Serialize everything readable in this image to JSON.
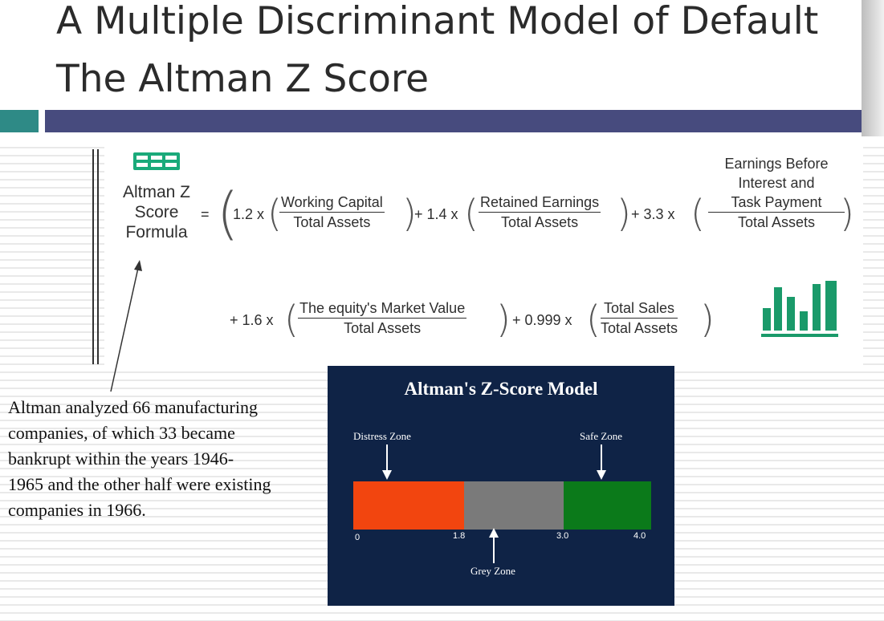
{
  "slide": {
    "title_line1": "A Multiple Discriminant Model of Default",
    "title_line2": "The Altman Z Score"
  },
  "formula": {
    "label_line1": "Altman Z",
    "label_line2": "Score",
    "label_line3": "Formula",
    "equals": "=",
    "term1_coef": "1.2 x",
    "term1_num": "Working Capital",
    "term1_den": "Total Assets",
    "term2_coef": "+ 1.4 x",
    "term2_num": "Retained Earnings",
    "term2_den": "Total Assets",
    "term3_coef": "+ 3.3 x",
    "term3_num_line1": "Earnings Before",
    "term3_num_line2": "Interest and",
    "term3_num_line3": "Task Payment",
    "term3_den": "Total Assets",
    "term4_coef": "+ 1.6 x",
    "term4_num": "The equity's Market Value",
    "term4_den": "Total Assets",
    "term5_coef": "+ 0.999 x",
    "term5_num": "Total Sales",
    "term5_den": "Total Assets",
    "icon_grid": "grid-table-icon",
    "icon_chart": "bar-chart-icon",
    "accent_color": "#1a9a6a"
  },
  "note": {
    "text": "Altman analyzed 66 manufacturing companies, of which 33 became bankrupt within the years 1946- 1965 and the other half were existing companies in 1966."
  },
  "zscore_model": {
    "title": "Altman's Z-Score Model",
    "distress_label": "Distress Zone",
    "safe_label": "Safe Zone",
    "grey_label": "Grey Zone",
    "tick_0": "0",
    "tick_1": "1.8",
    "tick_2": "3.0",
    "tick_3": "4.0",
    "zones": [
      {
        "name": "distress",
        "from": 0,
        "to": 1.8,
        "color": "#f2450f"
      },
      {
        "name": "grey",
        "from": 1.8,
        "to": 3.0,
        "color": "#7a7a7a"
      },
      {
        "name": "safe",
        "from": 3.0,
        "to": 4.0,
        "color": "#0b7a1a"
      }
    ],
    "background": "#0f2346"
  },
  "colors": {
    "title_bar": "#474b7e",
    "teal_accent": "#2e8a86"
  }
}
